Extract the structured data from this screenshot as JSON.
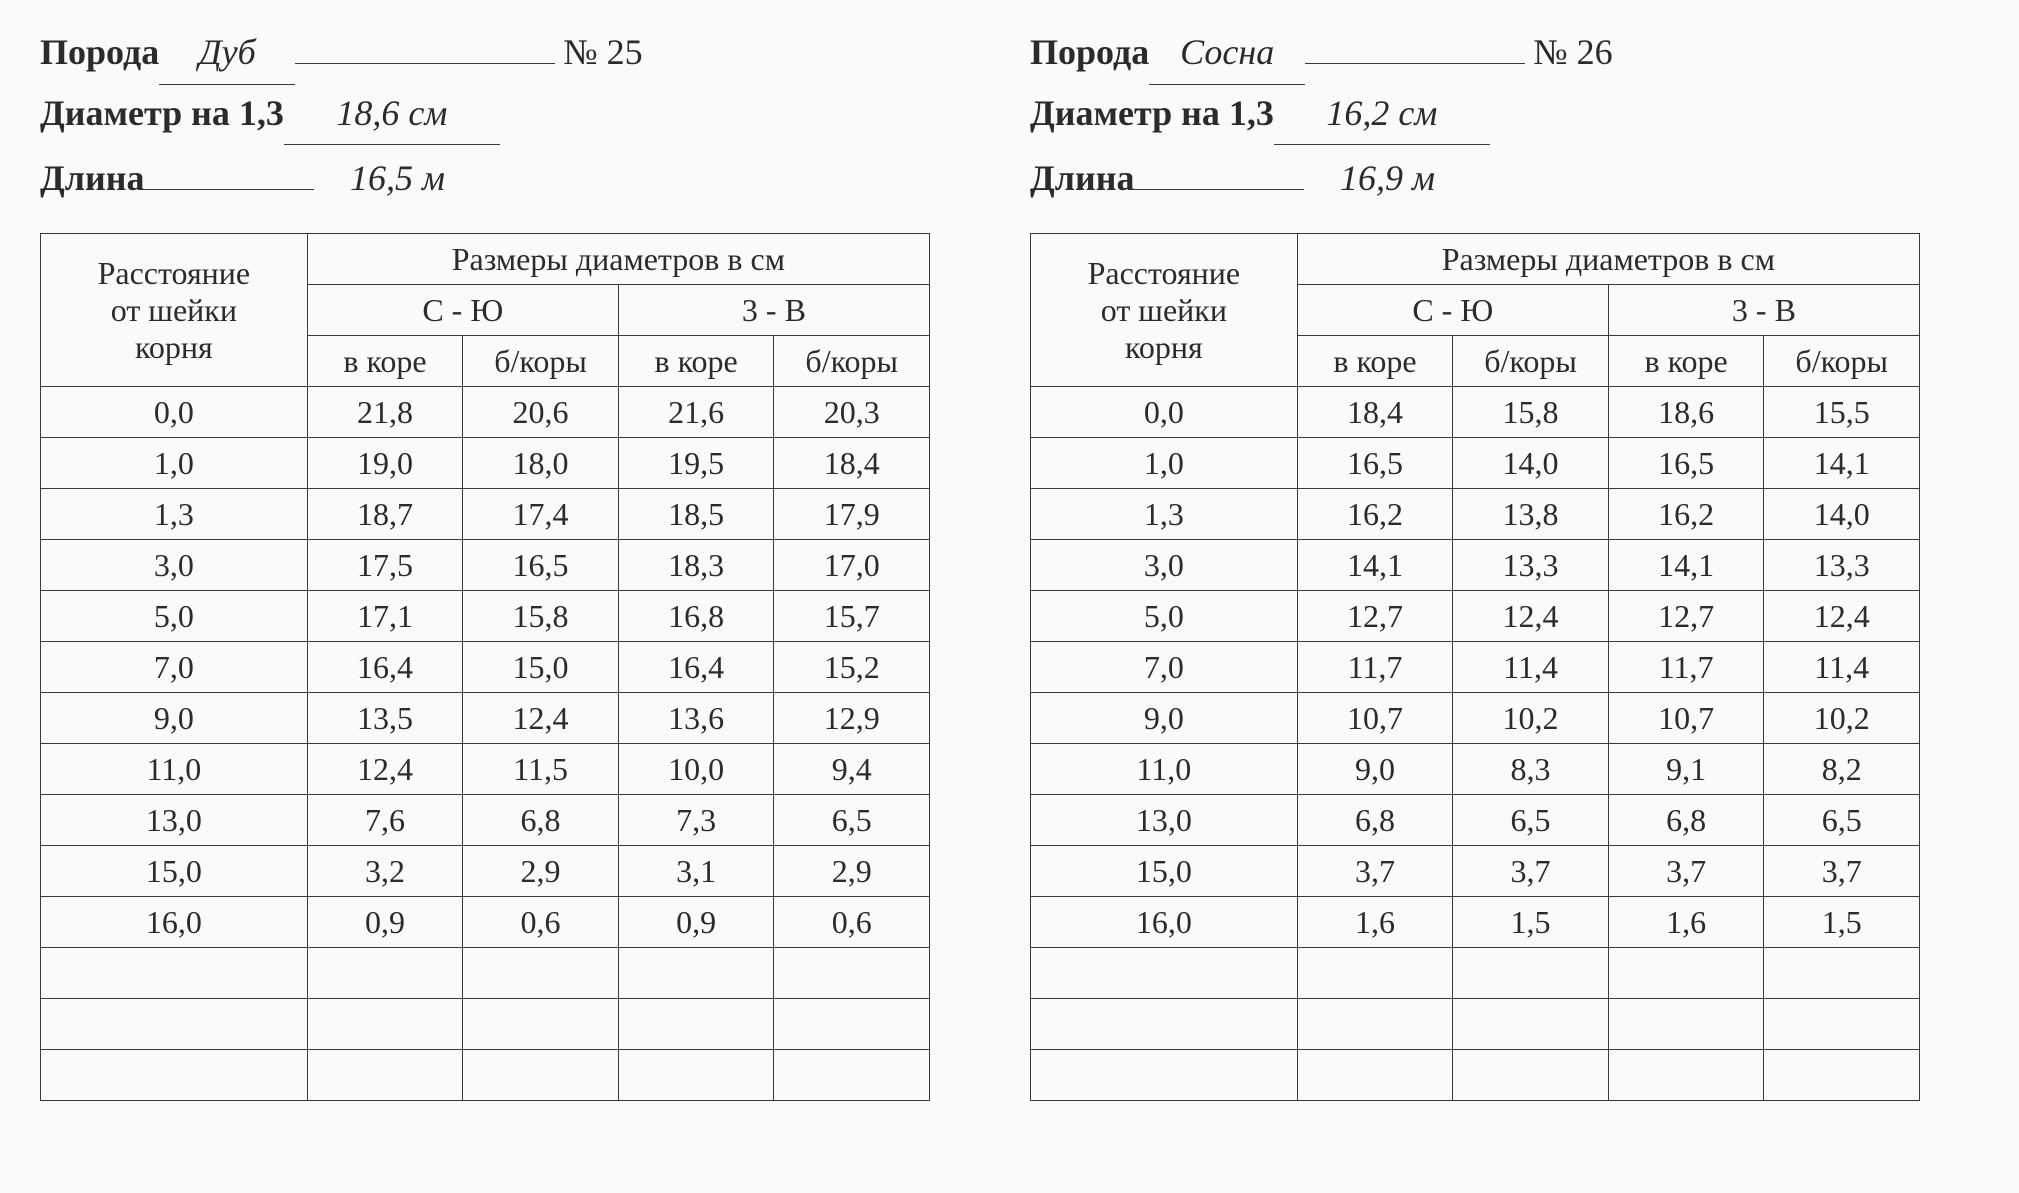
{
  "common": {
    "label_species": "Порода",
    "label_number": "№",
    "label_diameter": "Диаметр на 1,3",
    "label_length": "Длина",
    "table_header_distance_l1": "Расстояние",
    "table_header_distance_l2": "от шейки",
    "table_header_distance_l3": "корня",
    "table_header_sizes": "Размеры диаметров в см",
    "table_header_dir_ns": "С - Ю",
    "table_header_dir_ew": "3 - В",
    "table_header_bark": "в коре",
    "table_header_nobark": "б/коры"
  },
  "left": {
    "species": "Дуб",
    "number": "25",
    "diameter": "18,6 см",
    "length": "16,5 м",
    "rows": [
      {
        "d": "0,0",
        "a": "21,8",
        "b": "20,6",
        "c": "21,6",
        "e": "20,3"
      },
      {
        "d": "1,0",
        "a": "19,0",
        "b": "18,0",
        "c": "19,5",
        "e": "18,4"
      },
      {
        "d": "1,3",
        "a": "18,7",
        "b": "17,4",
        "c": "18,5",
        "e": "17,9"
      },
      {
        "d": "3,0",
        "a": "17,5",
        "b": "16,5",
        "c": "18,3",
        "e": "17,0"
      },
      {
        "d": "5,0",
        "a": "17,1",
        "b": "15,8",
        "c": "16,8",
        "e": "15,7"
      },
      {
        "d": "7,0",
        "a": "16,4",
        "b": "15,0",
        "c": "16,4",
        "e": "15,2"
      },
      {
        "d": "9,0",
        "a": "13,5",
        "b": "12,4",
        "c": "13,6",
        "e": "12,9"
      },
      {
        "d": "11,0",
        "a": "12,4",
        "b": "11,5",
        "c": "10,0",
        "e": "9,4"
      },
      {
        "d": "13,0",
        "a": "7,6",
        "b": "6,8",
        "c": "7,3",
        "e": "6,5"
      },
      {
        "d": "15,0",
        "a": "3,2",
        "b": "2,9",
        "c": "3,1",
        "e": "2,9"
      },
      {
        "d": "16,0",
        "a": "0,9",
        "b": "0,6",
        "c": "0,9",
        "e": "0,6"
      },
      {
        "d": "",
        "a": "",
        "b": "",
        "c": "",
        "e": ""
      },
      {
        "d": "",
        "a": "",
        "b": "",
        "c": "",
        "e": ""
      },
      {
        "d": "",
        "a": "",
        "b": "",
        "c": "",
        "e": ""
      }
    ]
  },
  "right": {
    "species": "Сосна",
    "number": "26",
    "diameter": "16,2 см",
    "length": "16,9 м",
    "rows": [
      {
        "d": "0,0",
        "a": "18,4",
        "b": "15,8",
        "c": "18,6",
        "e": "15,5"
      },
      {
        "d": "1,0",
        "a": "16,5",
        "b": "14,0",
        "c": "16,5",
        "e": "14,1"
      },
      {
        "d": "1,3",
        "a": "16,2",
        "b": "13,8",
        "c": "16,2",
        "e": "14,0"
      },
      {
        "d": "3,0",
        "a": "14,1",
        "b": "13,3",
        "c": "14,1",
        "e": "13,3"
      },
      {
        "d": "5,0",
        "a": "12,7",
        "b": "12,4",
        "c": "12,7",
        "e": "12,4"
      },
      {
        "d": "7,0",
        "a": "11,7",
        "b": "11,4",
        "c": "11,7",
        "e": "11,4"
      },
      {
        "d": "9,0",
        "a": "10,7",
        "b": "10,2",
        "c": "10,7",
        "e": "10,2"
      },
      {
        "d": "11,0",
        "a": "9,0",
        "b": "8,3",
        "c": "9,1",
        "e": "8,2"
      },
      {
        "d": "13,0",
        "a": "6,8",
        "b": "6,5",
        "c": "6,8",
        "e": "6,5"
      },
      {
        "d": "15,0",
        "a": "3,7",
        "b": "3,7",
        "c": "3,7",
        "e": "3,7"
      },
      {
        "d": "16,0",
        "a": "1,6",
        "b": "1,5",
        "c": "1,6",
        "e": "1,5"
      },
      {
        "d": "",
        "a": "",
        "b": "",
        "c": "",
        "e": ""
      },
      {
        "d": "",
        "a": "",
        "b": "",
        "c": "",
        "e": ""
      },
      {
        "d": "",
        "a": "",
        "b": "",
        "c": "",
        "e": ""
      }
    ]
  }
}
